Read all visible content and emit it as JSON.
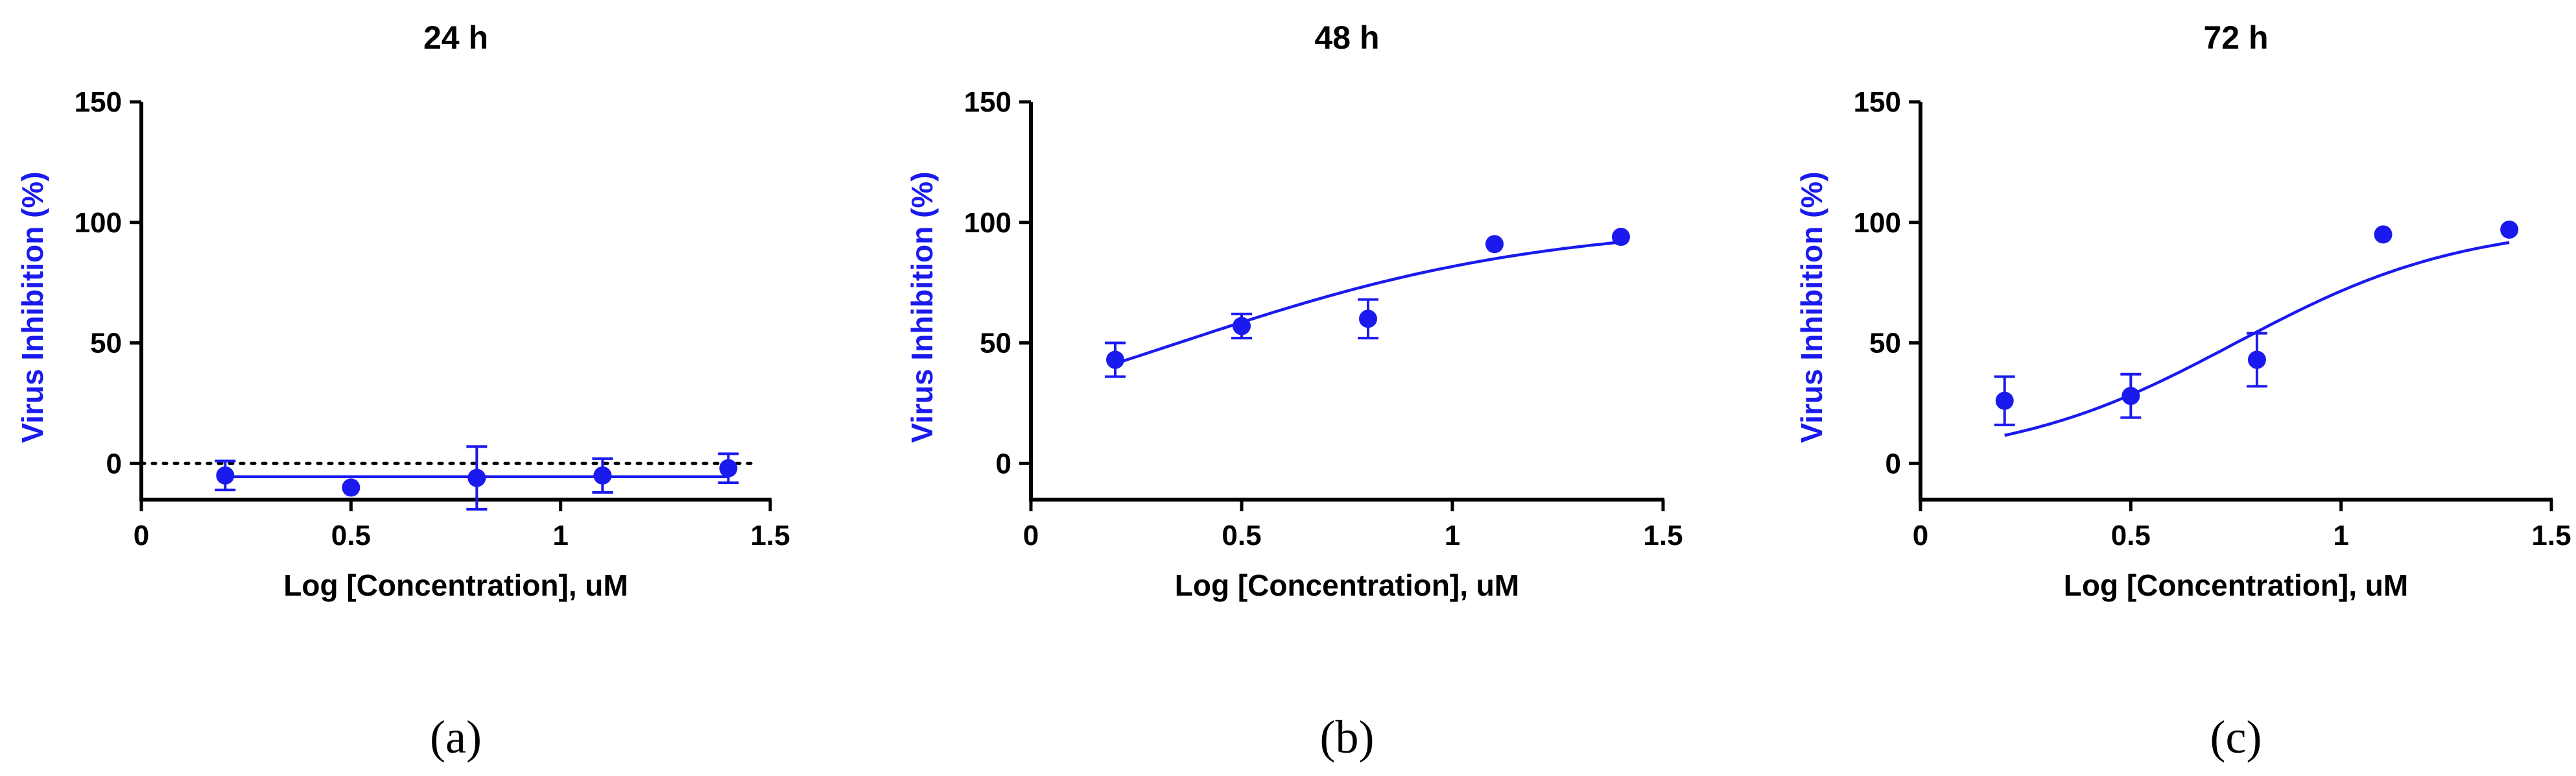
{
  "colors": {
    "series": "#1a1aee",
    "axis": "#000000",
    "text": "#000000"
  },
  "chart_data": [
    {
      "type": "scatter",
      "title": "24 h",
      "caption": "(a)",
      "xlabel": "Log [Concentration], uM",
      "ylabel": "Virus Inhibition (%)",
      "xlim": [
        0,
        1.5
      ],
      "ylim": [
        -15,
        150
      ],
      "xticks": [
        0,
        0.5,
        1,
        1.5
      ],
      "xtick_labels": [
        "0",
        "0.5",
        "1",
        "1.5"
      ],
      "yticks": [
        0,
        50,
        100,
        150
      ],
      "ytick_labels": [
        "0",
        "50",
        "100",
        "150"
      ],
      "baseline": {
        "y": 0,
        "style": "dotted"
      },
      "series": [
        {
          "name": "Virus Inhibition",
          "x": [
            0.2,
            0.5,
            0.8,
            1.1,
            1.4
          ],
          "y": [
            -5,
            -10,
            -6,
            -5,
            -2
          ],
          "error": [
            6,
            0,
            13,
            7,
            6
          ]
        }
      ],
      "fit": {
        "type": "flat",
        "x": [
          0.2,
          1.4
        ],
        "y": [
          -5.5,
          -5.5
        ]
      }
    },
    {
      "type": "scatter",
      "title": "48 h",
      "caption": "(b)",
      "xlabel": "Log [Concentration], uM",
      "ylabel": "Virus Inhibition (%)",
      "xlim": [
        0,
        1.5
      ],
      "ylim": [
        -15,
        150
      ],
      "xticks": [
        0,
        0.5,
        1,
        1.5
      ],
      "xtick_labels": [
        "0",
        "0.5",
        "1",
        "1.5"
      ],
      "yticks": [
        0,
        50,
        100,
        150
      ],
      "ytick_labels": [
        "0",
        "50",
        "100",
        "150"
      ],
      "series": [
        {
          "name": "Virus Inhibition",
          "x": [
            0.2,
            0.5,
            0.8,
            1.1,
            1.4
          ],
          "y": [
            43,
            57,
            60,
            91,
            94
          ],
          "error": [
            7,
            5,
            8,
            0,
            0
          ]
        }
      ],
      "fit": {
        "type": "sigmoid",
        "bottom": 0,
        "top": 100,
        "logEC50": 0.35,
        "hill": 1.0,
        "x": [
          0.2,
          1.4
        ]
      }
    },
    {
      "type": "scatter",
      "title": "72 h",
      "caption": "(c)",
      "xlabel": "Log [Concentration], uM",
      "ylabel": "Virus Inhibition (%)",
      "xlim": [
        0,
        1.5
      ],
      "ylim": [
        -15,
        150
      ],
      "xticks": [
        0,
        0.5,
        1,
        1.5
      ],
      "xtick_labels": [
        "0",
        "0.5",
        "1",
        "1.5"
      ],
      "yticks": [
        0,
        50,
        100,
        150
      ],
      "ytick_labels": [
        "0",
        "50",
        "100",
        "150"
      ],
      "series": [
        {
          "name": "Virus Inhibition",
          "x": [
            0.2,
            0.5,
            0.8,
            1.1,
            1.4
          ],
          "y": [
            26,
            28,
            43,
            95,
            97
          ],
          "error": [
            10,
            9,
            11,
            0,
            0
          ]
        }
      ],
      "fit": {
        "type": "sigmoid",
        "bottom": 0,
        "top": 100,
        "logEC50": 0.75,
        "hill": 1.6,
        "x": [
          0.2,
          1.4
        ]
      }
    }
  ]
}
